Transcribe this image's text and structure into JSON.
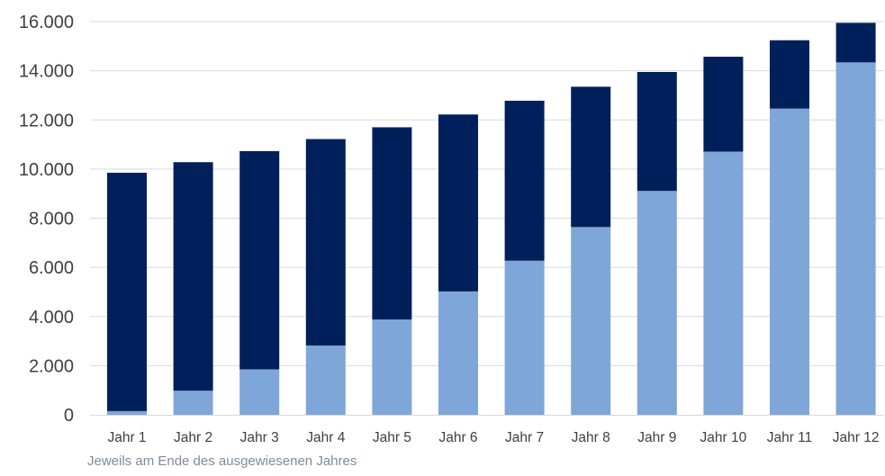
{
  "chart_data": {
    "type": "bar",
    "stacked": true,
    "categories": [
      "Jahr 1",
      "Jahr 2",
      "Jahr 3",
      "Jahr 4",
      "Jahr 5",
      "Jahr 6",
      "Jahr 7",
      "Jahr 8",
      "Jahr 9",
      "Jahr 10",
      "Jahr 11",
      "Jahr 12"
    ],
    "series": [
      {
        "values": [
          150,
          980,
          1850,
          2820,
          3880,
          5020,
          6270,
          7640,
          9110,
          10710,
          12460,
          14340
        ],
        "color": "#7fa6d8"
      },
      {
        "values": [
          9700,
          9300,
          8880,
          8400,
          7820,
          7200,
          6510,
          5710,
          4840,
          3860,
          2780,
          1610
        ],
        "color": "#00205b"
      }
    ],
    "ylim": [
      0,
      16000
    ],
    "yticks": [
      0,
      2000,
      4000,
      6000,
      8000,
      10000,
      12000,
      14000,
      16000
    ],
    "ytick_labels": [
      "0",
      "2.000",
      "4.000",
      "6.000",
      "8.000",
      "10.000",
      "12.000",
      "14.000",
      "16.000"
    ],
    "grid": true,
    "legend": "none",
    "xlabel": "",
    "ylabel": "",
    "title": "",
    "footnote": "Jeweils am Ende des ausgewiesenen Jahres"
  }
}
